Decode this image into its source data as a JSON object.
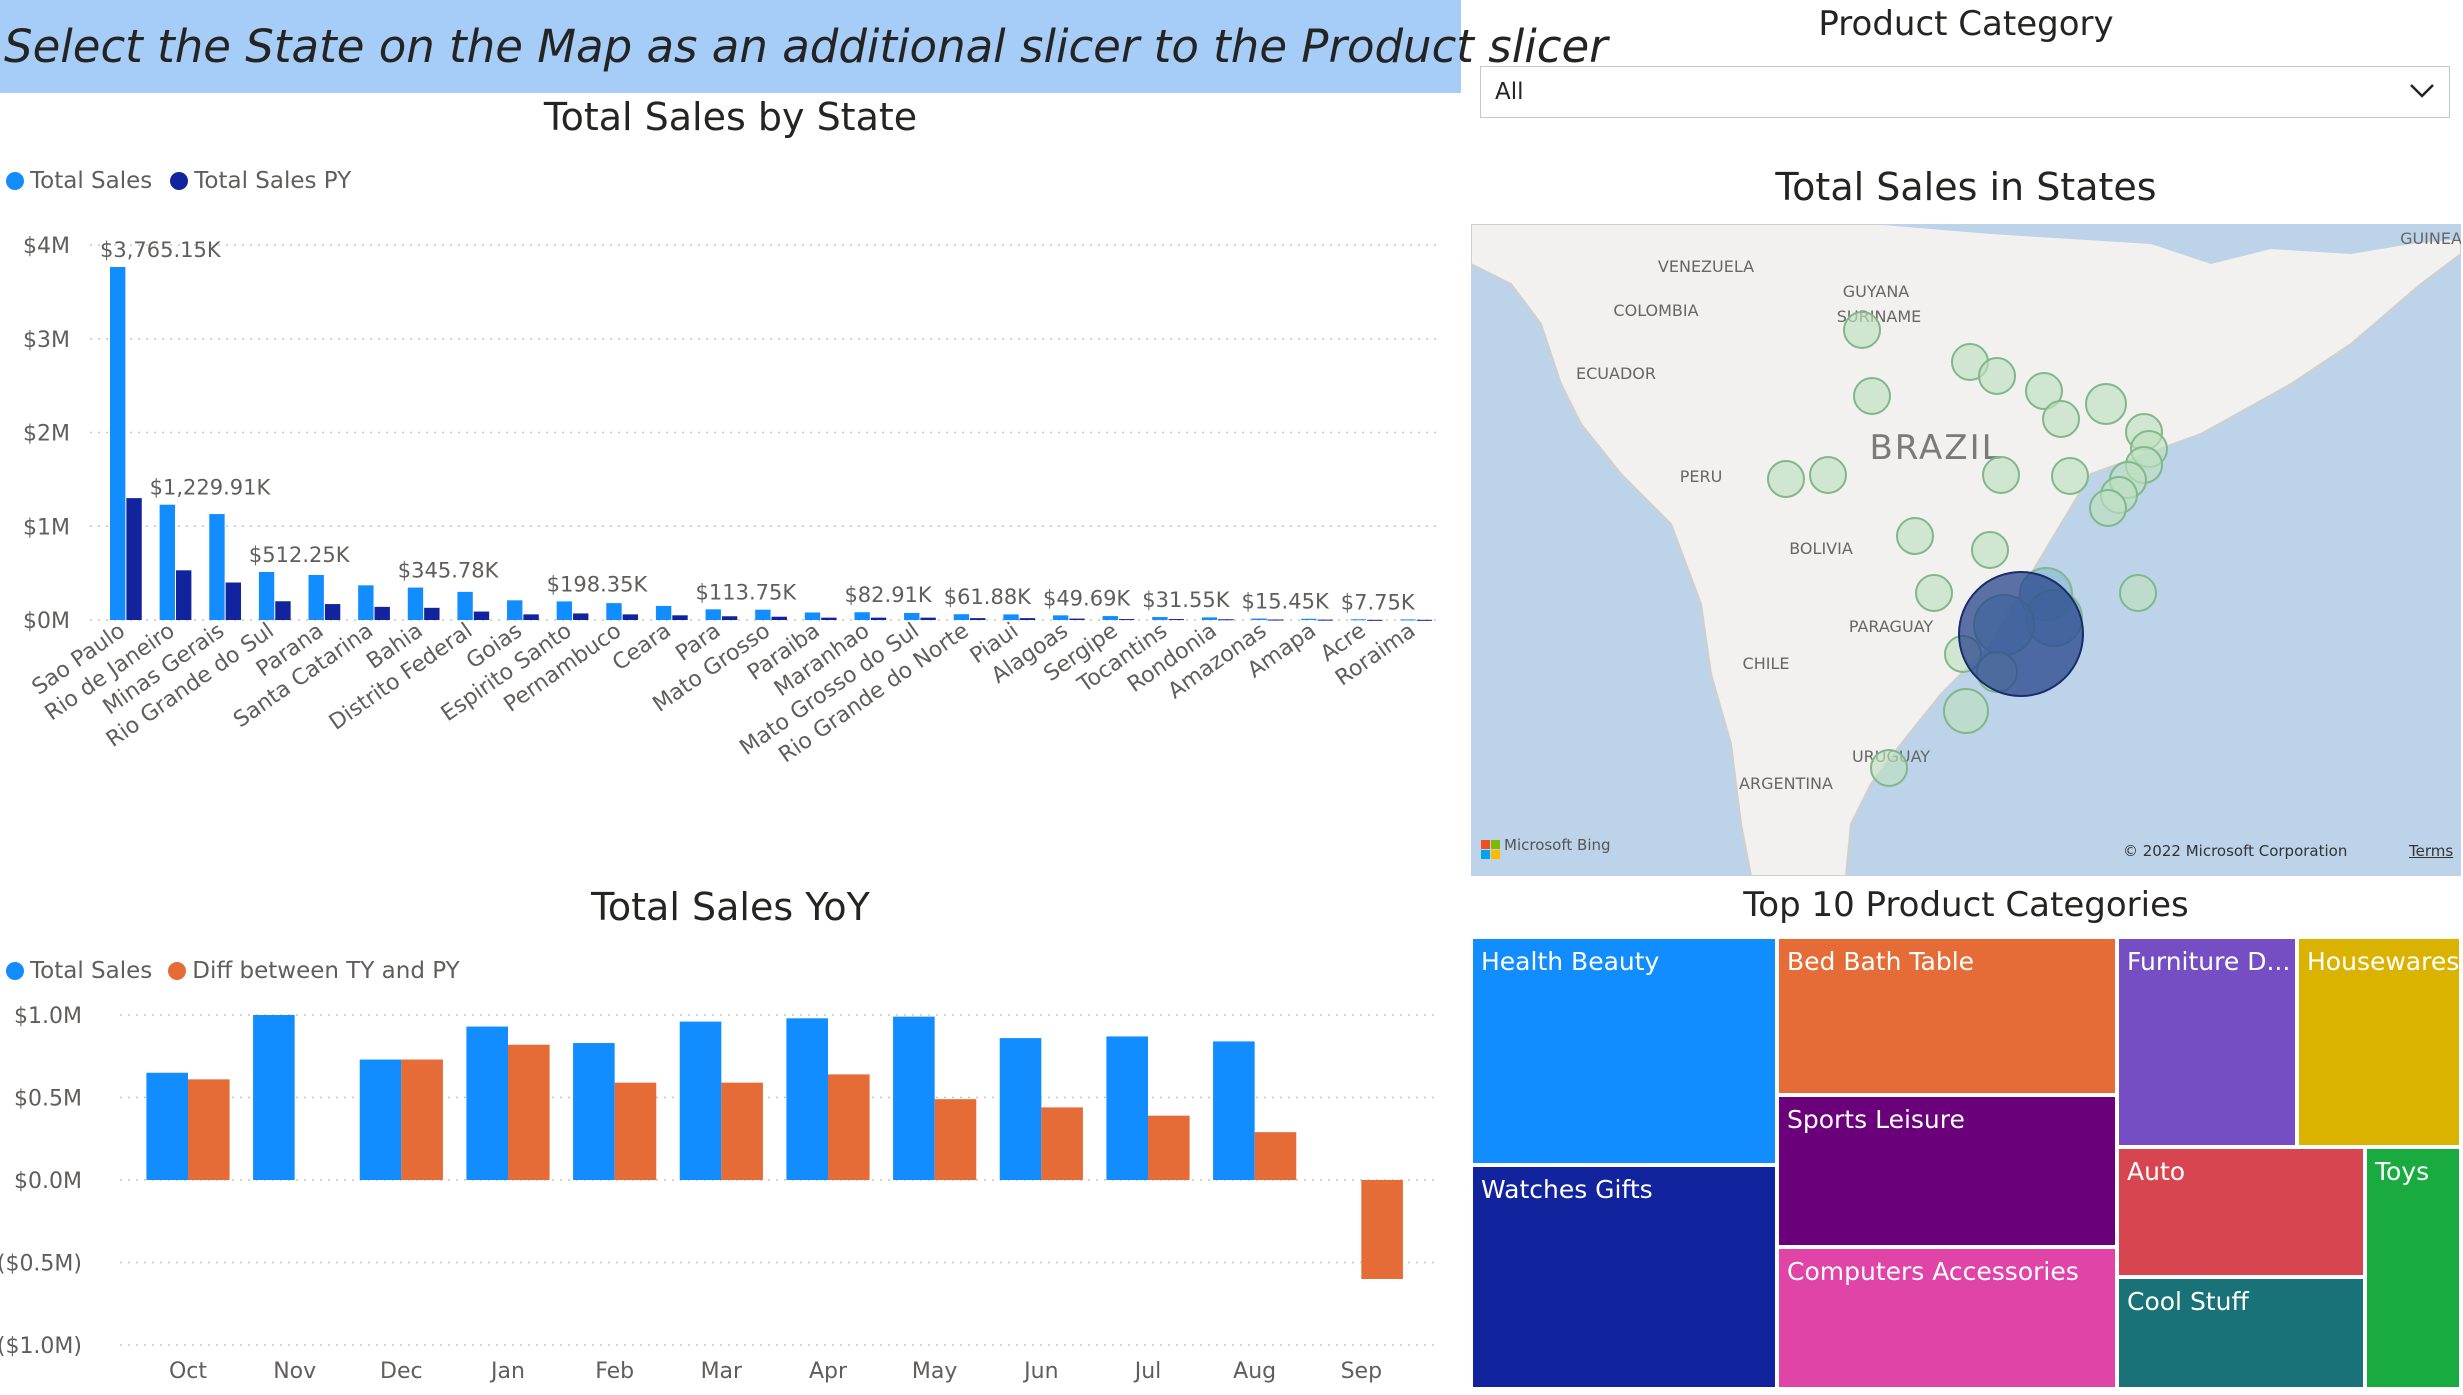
{
  "banner": {
    "text": "Select the State on the Map as an additional slicer to the Product slicer"
  },
  "slicer": {
    "title": "Product Category",
    "value": "All"
  },
  "sales_by_state": {
    "title": "Total Sales by State",
    "legend": [
      "Total Sales",
      "Total Sales PY"
    ]
  },
  "map": {
    "title": "Total Sales in States",
    "labels": [
      "VENEZUELA",
      "GUYANA",
      "SURINAME",
      "COLOMBIA",
      "ECUADOR",
      "BRAZIL",
      "PERU",
      "BOLIVIA",
      "PARAGUAY",
      "CHILE",
      "ARGENTINA",
      "URUGUAY",
      "GUINEA"
    ],
    "attribution": "© 2022 Microsoft Corporation",
    "terms": "Terms",
    "bing": "Microsoft Bing"
  },
  "yoy": {
    "title": "Total Sales YoY",
    "legend": [
      "Total Sales",
      "Diff between TY and PY"
    ]
  },
  "treemap": {
    "title": "Top 10 Product Categories",
    "items": [
      {
        "label": "Health Beauty",
        "color": "#118dff"
      },
      {
        "label": "Watches Gifts",
        "color": "#12239e"
      },
      {
        "label": "Bed Bath Table",
        "color": "#e66c37"
      },
      {
        "label": "Sports Leisure",
        "color": "#6b007b"
      },
      {
        "label": "Computers Accessories",
        "color": "#e044a7"
      },
      {
        "label": "Furniture D...",
        "color": "#744ec2"
      },
      {
        "label": "Housewares",
        "color": "#d9b300"
      },
      {
        "label": "Auto",
        "color": "#d64550"
      },
      {
        "label": "Toys",
        "color": "#1aab40"
      },
      {
        "label": "Cool Stuff",
        "color": "#197278"
      }
    ]
  },
  "chart_data": [
    {
      "type": "bar",
      "title": "Total Sales by State",
      "categories": [
        "Sao Paulo",
        "Rio de Janeiro",
        "Minas Gerais",
        "Rio Grande do Sul",
        "Parana",
        "Santa Catarina",
        "Bahia",
        "Distrito Federal",
        "Goias",
        "Espirito Santo",
        "Pernambuco",
        "Ceara",
        "Para",
        "Mato Grosso",
        "Paraiba",
        "Maranhao",
        "Mato Grosso do Sul",
        "Rio Grande do Norte",
        "Piaui",
        "Alagoas",
        "Sergipe",
        "Tocantins",
        "Rondonia",
        "Amazonas",
        "Amapa",
        "Acre",
        "Roraima"
      ],
      "series": [
        {
          "name": "Total Sales",
          "color": "#118dff",
          "values": [
            3765.15,
            1229.91,
            1130,
            512.25,
            480,
            370,
            345.78,
            300,
            210,
            198.35,
            180,
            150,
            113.75,
            110,
            80,
            82.91,
            75,
            61.88,
            60,
            49.69,
            42,
            31.55,
            28,
            15.45,
            13,
            7.75,
            6
          ]
        },
        {
          "name": "Total Sales PY",
          "color": "#12239e",
          "values": [
            1300,
            530,
            400,
            200,
            170,
            140,
            130,
            90,
            60,
            70,
            60,
            50,
            40,
            35,
            25,
            25,
            25,
            20,
            20,
            15,
            10,
            10,
            8,
            5,
            4,
            2,
            2
          ]
        }
      ],
      "data_labels": [
        {
          "category": "Sao Paulo",
          "text": "$3,765.15K"
        },
        {
          "category": "Rio de Janeiro",
          "text": "$1,229.91K"
        },
        {
          "category": "Rio Grande do Sul",
          "text": "$512.25K"
        },
        {
          "category": "Bahia",
          "text": "$345.78K"
        },
        {
          "category": "Espirito Santo",
          "text": "$198.35K"
        },
        {
          "category": "Para",
          "text": "$113.75K"
        },
        {
          "category": "Maranhao",
          "text": "$82.91K"
        },
        {
          "category": "Rio Grande do Norte",
          "text": "$61.88K"
        },
        {
          "category": "Alagoas",
          "text": "$49.69K"
        },
        {
          "category": "Tocantins",
          "text": "$31.55K"
        },
        {
          "category": "Amazonas",
          "text": "$15.45K"
        },
        {
          "category": "Acre",
          "text": "$7.75K"
        }
      ],
      "yticks": [
        "$0M",
        "$1M",
        "$2M",
        "$3M",
        "$4M"
      ],
      "ylim": [
        0,
        4000
      ],
      "units": "K",
      "grid": true,
      "legend": "top-left"
    },
    {
      "type": "bar",
      "title": "Total Sales YoY",
      "categories": [
        "Oct",
        "Nov",
        "Dec",
        "Jan",
        "Feb",
        "Mar",
        "Apr",
        "May",
        "Jun",
        "Jul",
        "Aug",
        "Sep"
      ],
      "series": [
        {
          "name": "Total Sales",
          "color": "#118dff",
          "values": [
            0.65,
            1.0,
            0.73,
            0.93,
            0.83,
            0.96,
            0.98,
            0.99,
            0.86,
            0.87,
            0.84,
            null
          ]
        },
        {
          "name": "Diff between TY and PY",
          "color": "#e66c37",
          "values": [
            0.61,
            null,
            0.73,
            0.82,
            0.59,
            0.59,
            0.64,
            0.49,
            0.44,
            0.39,
            0.29,
            -0.6
          ]
        }
      ],
      "yticks": [
        "($1.0M)",
        "($0.5M)",
        "$0.0M",
        "$0.5M",
        "$1.0M"
      ],
      "ylim": [
        -1.0,
        1.0
      ],
      "grid": true,
      "legend": "top-left"
    }
  ]
}
